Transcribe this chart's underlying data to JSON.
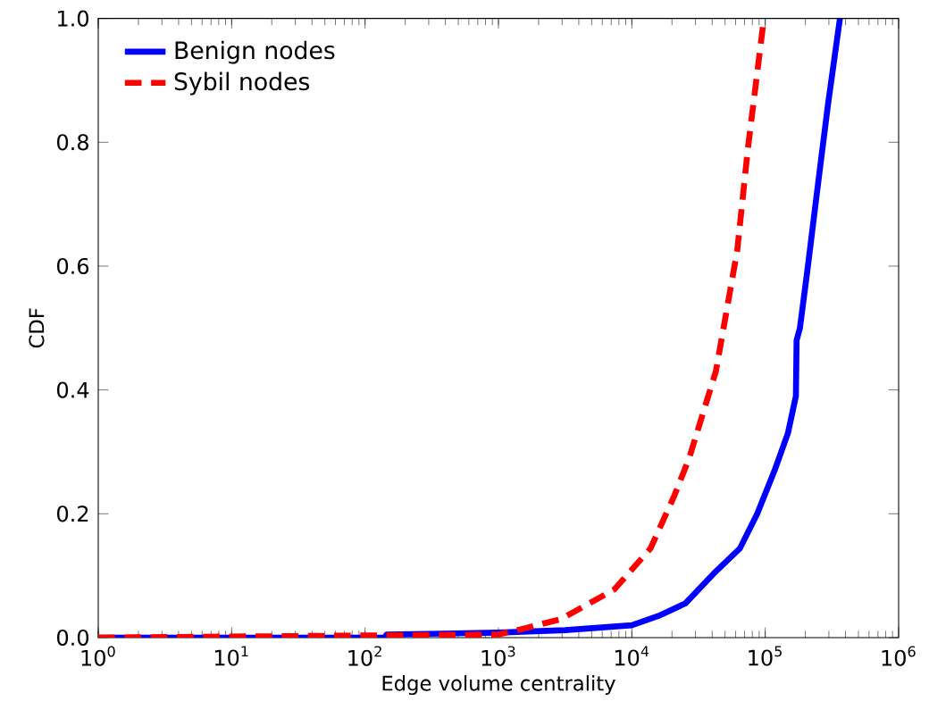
{
  "chart_data": {
    "type": "line",
    "xlabel": "Edge volume centrality",
    "ylabel": "CDF",
    "log": "x",
    "xlim": [
      1,
      1000000
    ],
    "ylim": [
      0,
      1
    ],
    "xticks": [
      {
        "value": 1,
        "label": "10$^{0}$"
      },
      {
        "value": 10,
        "label": "10$^{1}$"
      },
      {
        "value": 100,
        "label": "10$^{2}$"
      },
      {
        "value": 1000,
        "label": "10$^{3}$"
      },
      {
        "value": 10000,
        "label": "10$^{4}$"
      },
      {
        "value": 100000,
        "label": "10$^{5}$"
      },
      {
        "value": 1000000,
        "label": "10$^{6}$"
      }
    ],
    "yticks": [
      {
        "value": 0,
        "label": "0.0"
      },
      0.2,
      0.4,
      0.6,
      0.8,
      {
        "value": 1,
        "label": "1.0"
      }
    ],
    "legend": "top left",
    "grid": false,
    "marker": "none",
    "series": [
      {
        "name": "Benign nodes",
        "color": "#0000ff",
        "line_style": "solid",
        "x": [
          1,
          140,
          145,
          1000,
          3162,
          10000,
          15850,
          25120,
          42660,
          64570,
          87100,
          117500,
          147900,
          169800,
          171800,
          182000,
          208900,
          251200,
          295100,
          363100
        ],
        "values": [
          0,
          0,
          0.005,
          0.008,
          0.012,
          0.02,
          0.035,
          0.055,
          0.107,
          0.144,
          0.2,
          0.27,
          0.33,
          0.39,
          0.48,
          0.5,
          0.6,
          0.74,
          0.86,
          1.0
        ]
      },
      {
        "name": "Sybil nodes",
        "color": "#ff0000",
        "line_style": "dashed",
        "x": [
          1,
          1000,
          1585,
          2951,
          7413,
          13800,
          20890,
          26920,
          42660,
          61660,
          74130,
          97720
        ],
        "values": [
          0,
          0.005,
          0.015,
          0.03,
          0.078,
          0.144,
          0.23,
          0.29,
          0.43,
          0.625,
          0.79,
          1.0
        ]
      }
    ]
  }
}
